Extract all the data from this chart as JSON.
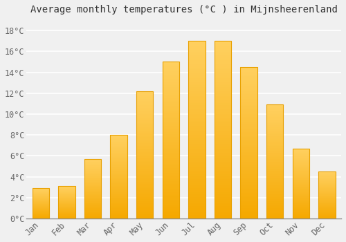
{
  "months": [
    "Jan",
    "Feb",
    "Mar",
    "Apr",
    "May",
    "Jun",
    "Jul",
    "Aug",
    "Sep",
    "Oct",
    "Nov",
    "Dec"
  ],
  "temperatures": [
    2.9,
    3.1,
    5.7,
    8.0,
    12.2,
    15.0,
    17.0,
    17.0,
    14.5,
    10.9,
    6.7,
    4.5
  ],
  "bar_color_bottom": "#F5A800",
  "bar_color_top": "#FFD060",
  "title": "Average monthly temperatures (°C ) in Mijnsheerenland",
  "ylabel_ticks": [
    "0°C",
    "2°C",
    "4°C",
    "6°C",
    "8°C",
    "10°C",
    "12°C",
    "14°C",
    "16°C",
    "18°C"
  ],
  "ytick_values": [
    0,
    2,
    4,
    6,
    8,
    10,
    12,
    14,
    16,
    18
  ],
  "ylim": [
    0,
    19
  ],
  "background_color": "#F0F0F0",
  "grid_color": "#FFFFFF",
  "title_fontsize": 10,
  "tick_fontsize": 8.5,
  "font_family": "monospace"
}
